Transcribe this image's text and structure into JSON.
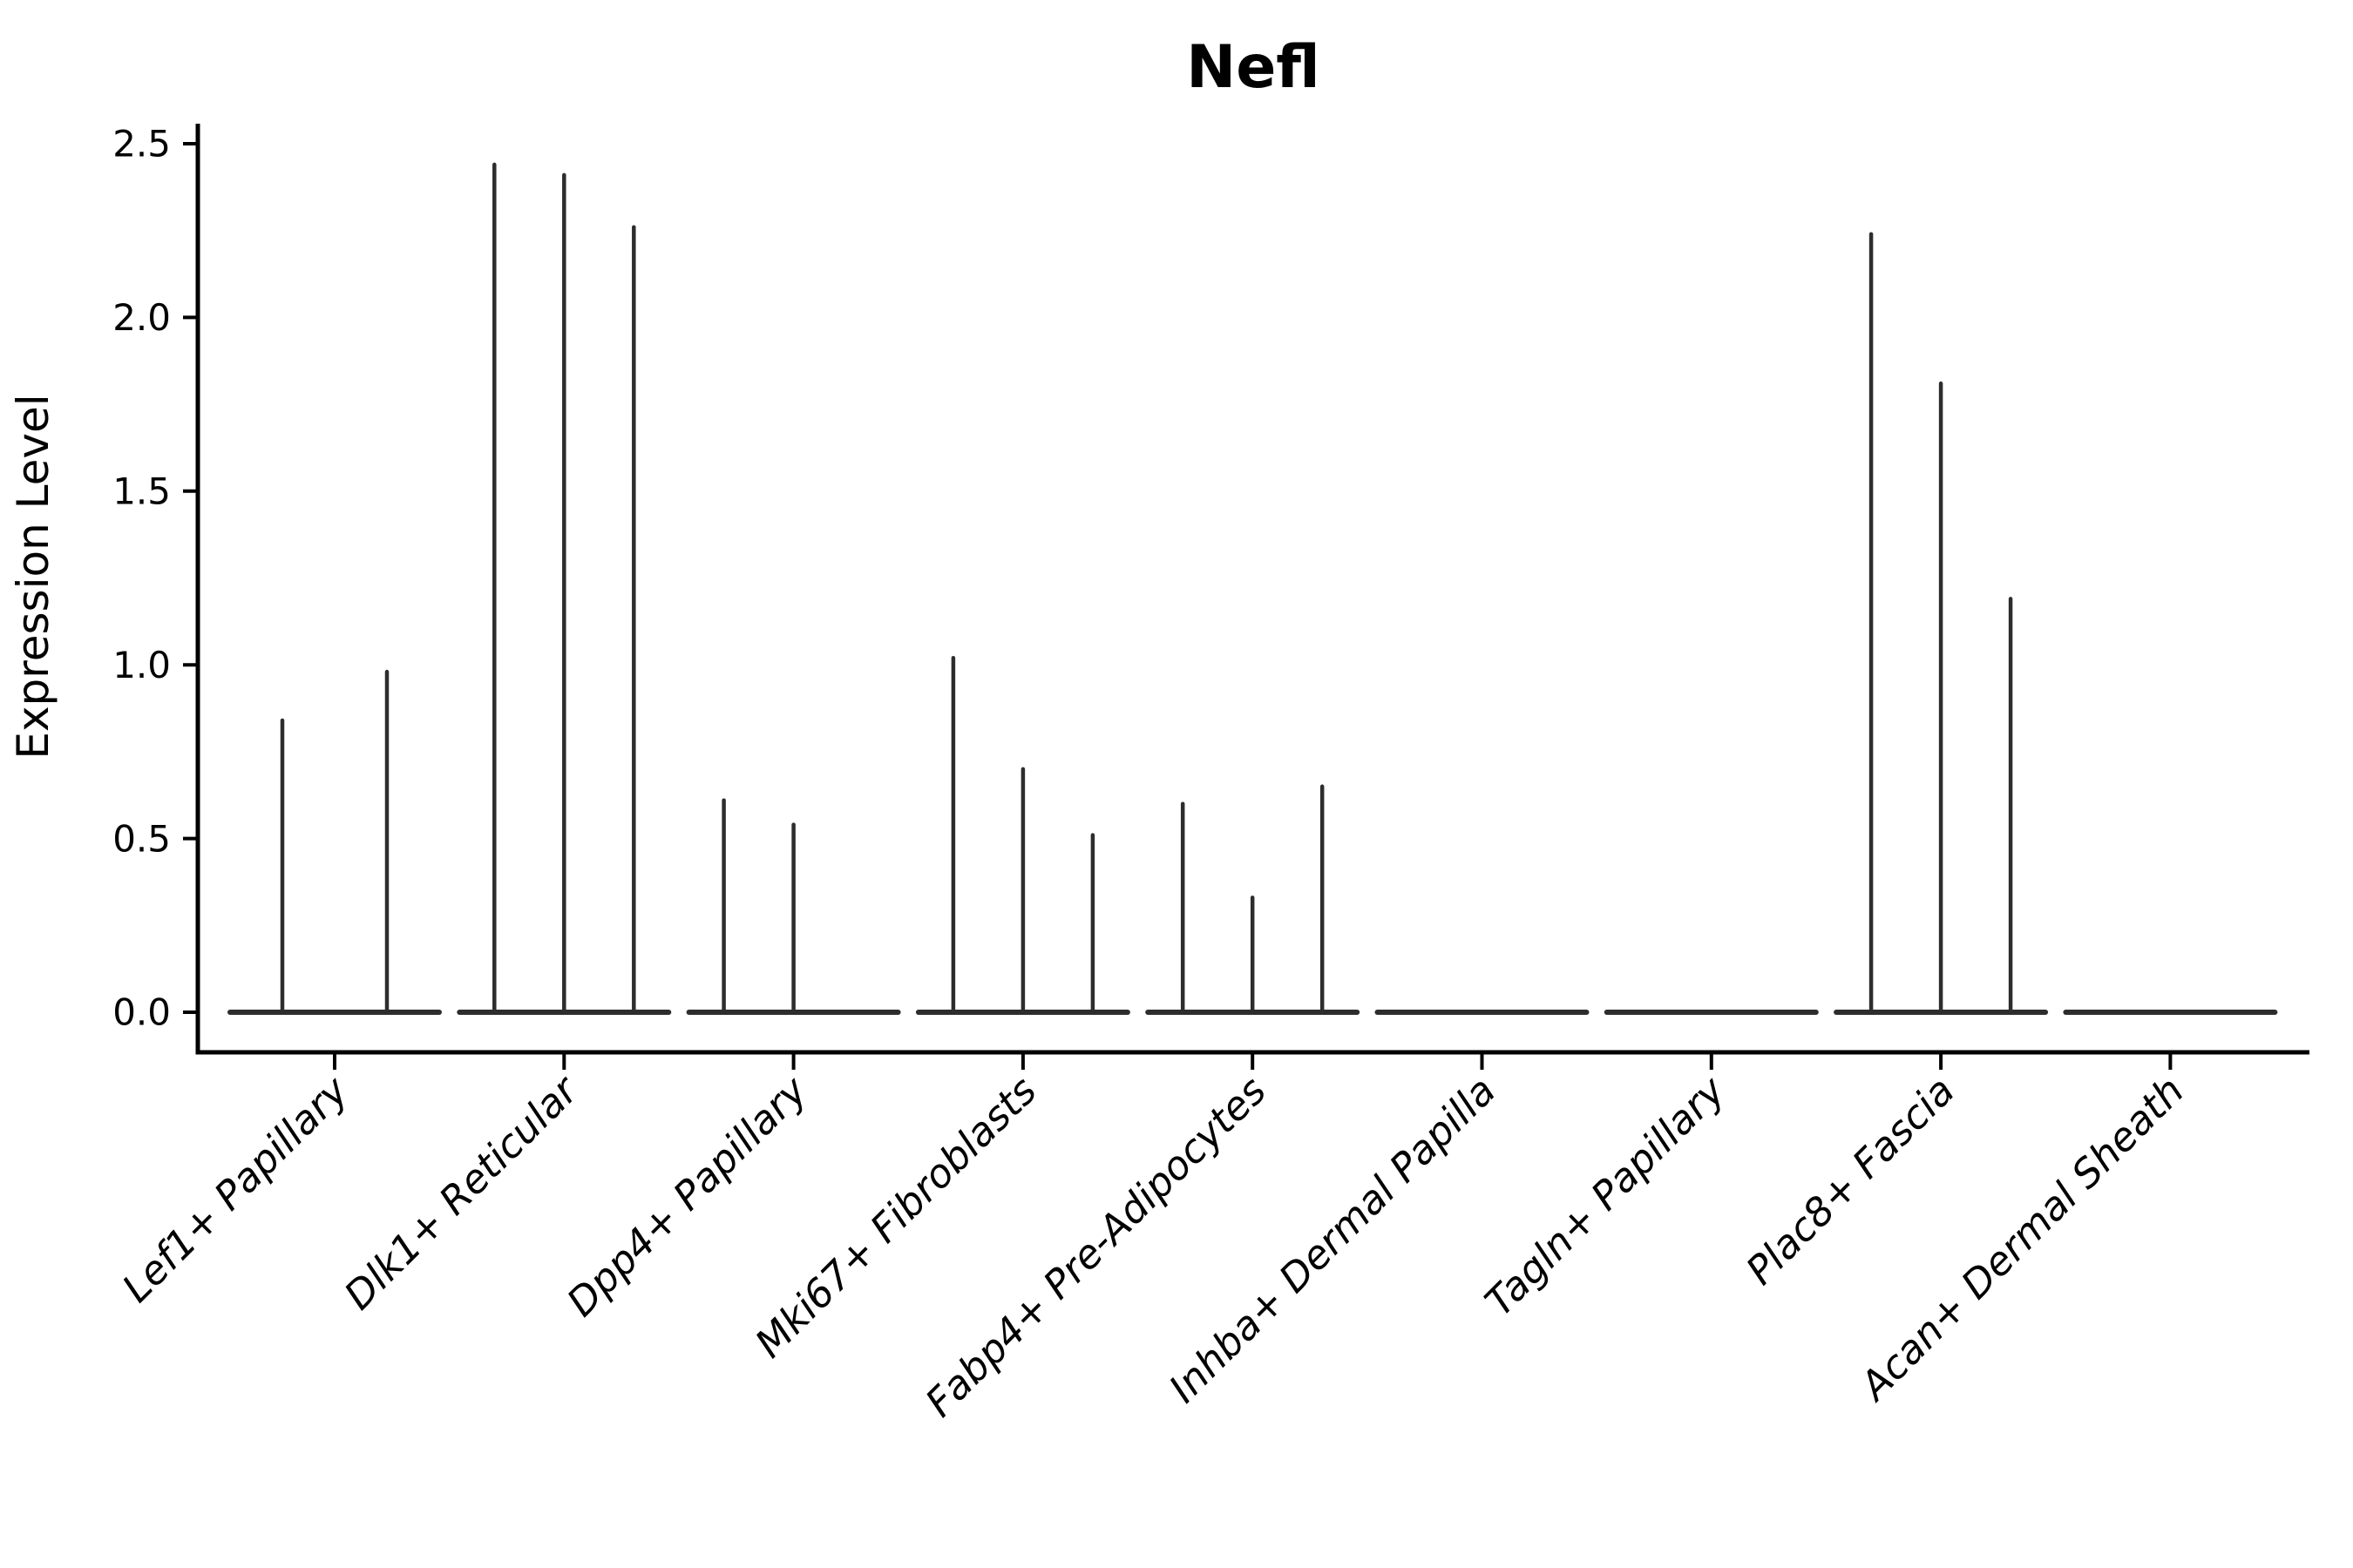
{
  "chart_data": {
    "type": "violin",
    "title": "Nefl",
    "ylabel": "Expression Level",
    "xlabel": "",
    "grid": false,
    "legend": "none",
    "background": "#ffffff",
    "ylim": [
      -0.12,
      2.56
    ],
    "yticks": [
      0.0,
      0.5,
      1.0,
      1.5,
      2.0,
      2.5
    ],
    "ytick_labels": [
      "0.0",
      "0.5",
      "1.0",
      "1.5",
      "2.0",
      "2.5"
    ],
    "categories": [
      "Lef1+ Papillary",
      "Dlk1+ Reticular",
      "Dpp4+ Papillary",
      "Mki67+ Fibroblasts",
      "Fabp4+ Pre-Adipocytes",
      "Inhba+ Dermal Papilla",
      "Tagln+ Papillary",
      "Plac8+ Fascia",
      "Acan+ Dermal Sheath"
    ],
    "violin_description": "Each category shows thin spike-shaped violins rising from a flat baseline at expression 0; value is the top (max) of each spike, 0 means flat baseline only",
    "violin_max_values": [
      [
        0.84,
        0.98
      ],
      [
        2.44,
        2.41,
        2.26
      ],
      [
        0.61,
        0.54,
        0
      ],
      [
        1.02,
        0.7,
        0.51
      ],
      [
        0.6,
        0.33,
        0.65
      ],
      [
        0,
        0,
        0
      ],
      [
        0,
        0,
        0
      ],
      [
        2.24,
        1.81,
        1.19
      ],
      [
        0,
        0,
        0
      ]
    ],
    "colors": {
      "violin_stroke": "#2d2d2d",
      "axis_stroke": "#000000",
      "text": "#000000"
    }
  }
}
